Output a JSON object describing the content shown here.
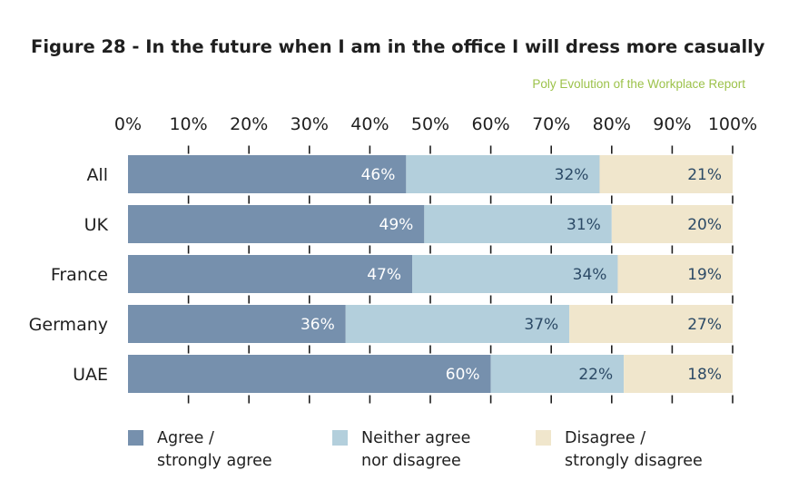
{
  "title": "Figure 28 - In the future when I am in the office I will dress more casually",
  "source": "Poly Evolution of the Workplace Report",
  "chart_data": {
    "type": "bar",
    "orientation": "horizontal",
    "stacked": true,
    "percent_stacked": true,
    "categories": [
      "All",
      "UK",
      "France",
      "Germany",
      "UAE"
    ],
    "series": [
      {
        "name": "Agree / strongly agree",
        "values": [
          46,
          49,
          47,
          36,
          60
        ],
        "labels": [
          "46%",
          "49%",
          "47%",
          "36%",
          "60%"
        ],
        "color": "#7690ad",
        "label_color": "#ffffff"
      },
      {
        "name": "Neither agree nor disagree",
        "values": [
          32,
          31,
          34,
          37,
          22
        ],
        "labels": [
          "32%",
          "31%",
          "34%",
          "37%",
          "22%"
        ],
        "color": "#b3cfdc",
        "label_color": "#2c4a66"
      },
      {
        "name": "Disagree / strongly disagree",
        "values": [
          21,
          20,
          19,
          27,
          18
        ],
        "labels": [
          "21%",
          "20%",
          "19%",
          "27%",
          "18%"
        ],
        "color": "#f0e6cc",
        "label_color": "#2c4a66"
      }
    ],
    "xlim": [
      0,
      100
    ],
    "xticks": [
      0,
      10,
      20,
      30,
      40,
      50,
      60,
      70,
      80,
      90,
      100
    ],
    "xtick_labels": [
      "0%",
      "10%",
      "20%",
      "30%",
      "40%",
      "50%",
      "60%",
      "70%",
      "80%",
      "90%",
      "100%"
    ],
    "axis_position": "top",
    "grid": false,
    "legend": {
      "position": "bottom",
      "entries": [
        [
          "Agree /",
          "strongly agree"
        ],
        [
          "Neither agree",
          "nor disagree"
        ],
        [
          "Disagree /",
          "strongly disagree"
        ]
      ]
    }
  }
}
